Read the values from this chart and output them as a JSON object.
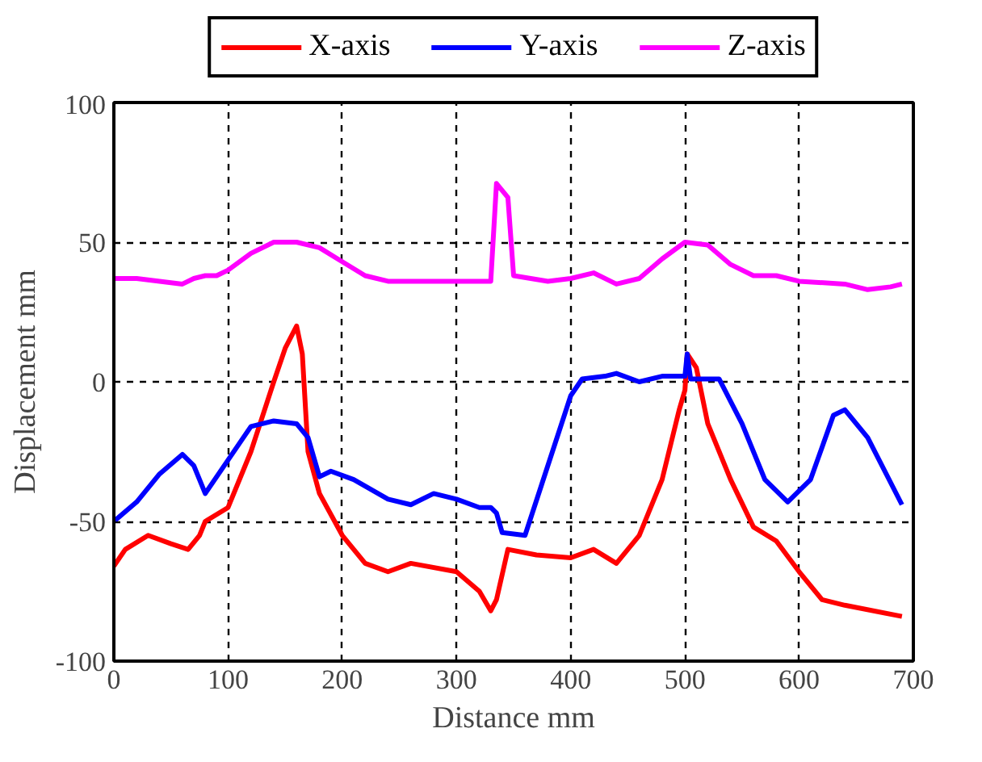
{
  "chart_data": {
    "type": "line",
    "xlabel": "Distance mm",
    "ylabel": "Displacement mm",
    "xlim": [
      0,
      700
    ],
    "ylim": [
      -100,
      100
    ],
    "xticks": [
      0,
      100,
      200,
      300,
      400,
      500,
      600,
      700
    ],
    "yticks": [
      -100,
      -50,
      0,
      50,
      100
    ],
    "grid": true,
    "legend": "top",
    "line_style": "solid",
    "marker": "none",
    "series": [
      {
        "name": "X-axis",
        "color": "#ff0000",
        "x": [
          0,
          10,
          30,
          50,
          65,
          75,
          80,
          100,
          120,
          140,
          150,
          160,
          165,
          170,
          180,
          200,
          220,
          240,
          260,
          300,
          320,
          330,
          335,
          345,
          370,
          400,
          420,
          440,
          460,
          480,
          495,
          500,
          502,
          510,
          520,
          540,
          560,
          580,
          600,
          620,
          640,
          690
        ],
        "values": [
          -66,
          -60,
          -55,
          -58,
          -60,
          -55,
          -50,
          -45,
          -25,
          0,
          12,
          20,
          10,
          -25,
          -40,
          -55,
          -65,
          -68,
          -65,
          -68,
          -75,
          -82,
          -78,
          -60,
          -62,
          -63,
          -60,
          -65,
          -55,
          -35,
          -10,
          -3,
          10,
          5,
          -15,
          -35,
          -52,
          -57,
          -68,
          -78,
          -80,
          -84
        ]
      },
      {
        "name": "Y-axis",
        "color": "#0000ff",
        "x": [
          0,
          20,
          40,
          60,
          70,
          80,
          100,
          120,
          140,
          160,
          170,
          180,
          190,
          210,
          240,
          260,
          280,
          300,
          320,
          330,
          335,
          340,
          360,
          380,
          400,
          410,
          430,
          440,
          460,
          480,
          500,
          502,
          505,
          530,
          550,
          570,
          590,
          610,
          630,
          640,
          660,
          690
        ],
        "values": [
          -50,
          -43,
          -33,
          -26,
          -30,
          -40,
          -28,
          -16,
          -14,
          -15,
          -20,
          -34,
          -32,
          -35,
          -42,
          -44,
          -40,
          -42,
          -45,
          -45,
          -47,
          -54,
          -55,
          -30,
          -5,
          1,
          2,
          3,
          0,
          2,
          2,
          10,
          1,
          1,
          -15,
          -35,
          -43,
          -35,
          -12,
          -10,
          -20,
          -44
        ]
      },
      {
        "name": "Z-axis",
        "color": "#ff00ff",
        "x": [
          0,
          20,
          40,
          60,
          70,
          80,
          90,
          100,
          120,
          140,
          160,
          180,
          200,
          220,
          240,
          260,
          300,
          330,
          335,
          345,
          350,
          380,
          400,
          420,
          440,
          460,
          480,
          500,
          520,
          540,
          560,
          580,
          600,
          640,
          660,
          680,
          690
        ],
        "values": [
          37,
          37,
          36,
          35,
          37,
          38,
          38,
          40,
          46,
          50,
          50,
          48,
          43,
          38,
          36,
          36,
          36,
          36,
          71,
          66,
          38,
          36,
          37,
          39,
          35,
          37,
          44,
          50,
          49,
          42,
          38,
          38,
          36,
          35,
          33,
          34,
          35
        ]
      }
    ]
  }
}
